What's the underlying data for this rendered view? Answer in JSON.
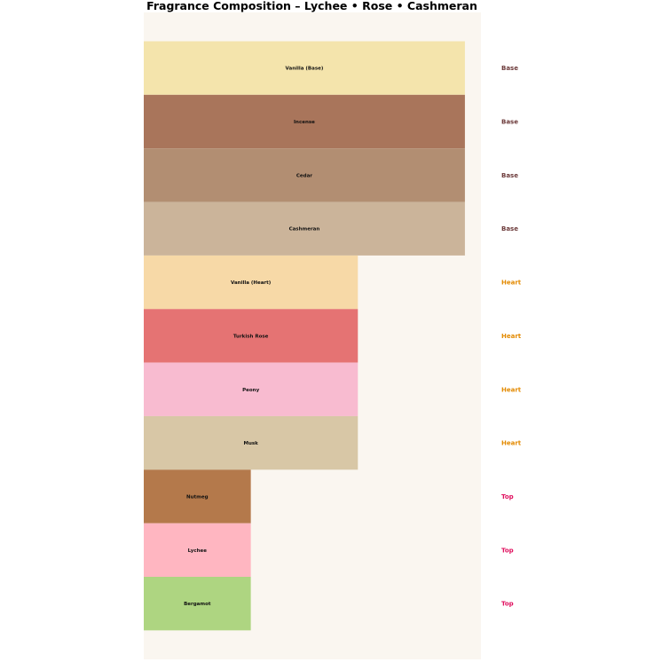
{
  "chart_data": {
    "type": "bar",
    "title": "Fragrance Composition – Lychee • Rose • Cashmeran",
    "orientation": "horizontal",
    "xlim": [
      0,
      3.15
    ],
    "background": "#faf6f0",
    "grid": false,
    "legend": "none",
    "categories": [
      "Vanilla (Base)",
      "Incense",
      "Cedar",
      "Cashmeran",
      "Vanilla (Heart)",
      "Turkish Rose",
      "Peony",
      "Musk",
      "Nutmeg",
      "Lychee",
      "Bergamot"
    ],
    "values": [
      3,
      3,
      3,
      3,
      2,
      2,
      2,
      2,
      1,
      1,
      1
    ],
    "tiers": [
      "Base",
      "Base",
      "Base",
      "Base",
      "Heart",
      "Heart",
      "Heart",
      "Heart",
      "Top",
      "Top",
      "Top"
    ],
    "colors": [
      "#f4e4ac",
      "#a9755b",
      "#b28e72",
      "#cbb49a",
      "#f7d9a7",
      "#e57373",
      "#f8bbd0",
      "#d8c7a6",
      "#b4794b",
      "#ffb6c1",
      "#aed581"
    ],
    "tier_colors": {
      "Base": "#6d3b3b",
      "Heart": "#e38a00",
      "Top": "#e0115f"
    }
  }
}
